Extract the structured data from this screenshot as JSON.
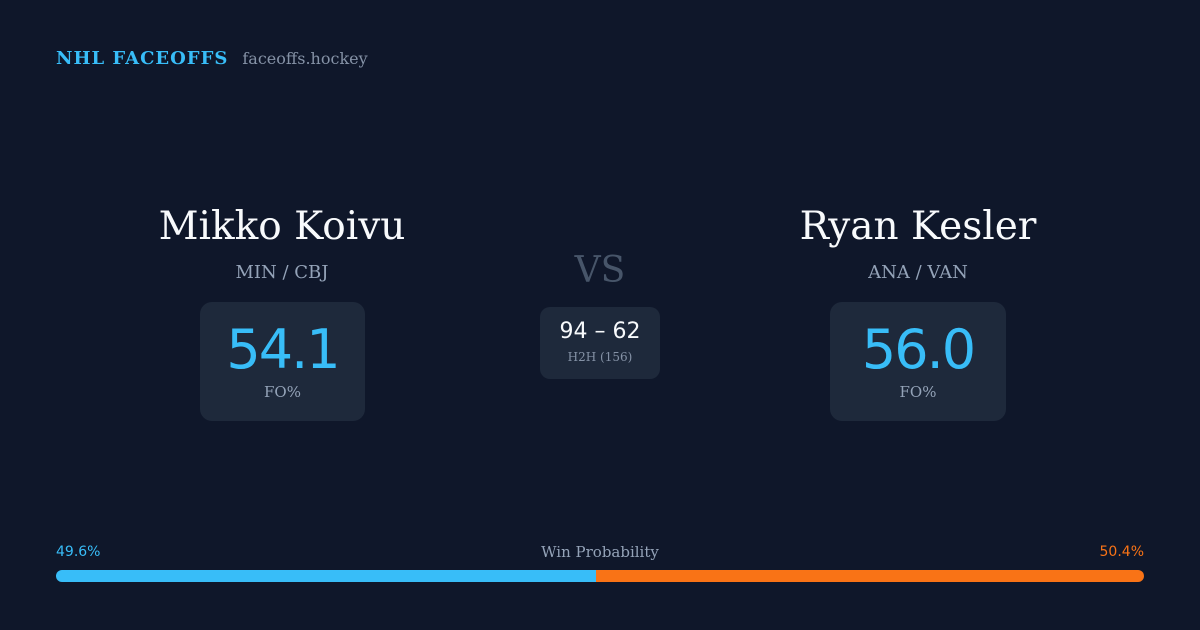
{
  "brand": {
    "name": "NHL FACEOFFS",
    "domain": "faceoffs.hockey"
  },
  "player_left": {
    "name": "Mikko Koivu",
    "teams": "MIN / CBJ",
    "fo_value": "54.1",
    "fo_label": "FO%"
  },
  "player_right": {
    "name": "Ryan Kesler",
    "teams": "ANA / VAN",
    "fo_value": "56.0",
    "fo_label": "FO%"
  },
  "matchup": {
    "vs_label": "VS",
    "h2h_score": "94 – 62",
    "h2h_label": "H2H (156)"
  },
  "win_probability": {
    "label": "Win Probability",
    "left_text": "49.6%",
    "right_text": "50.4%",
    "left_value": 49.6,
    "right_value": 50.4
  },
  "colors": {
    "accent_left": "#38bdf8",
    "accent_right": "#f97316",
    "background": "#0f172a"
  }
}
